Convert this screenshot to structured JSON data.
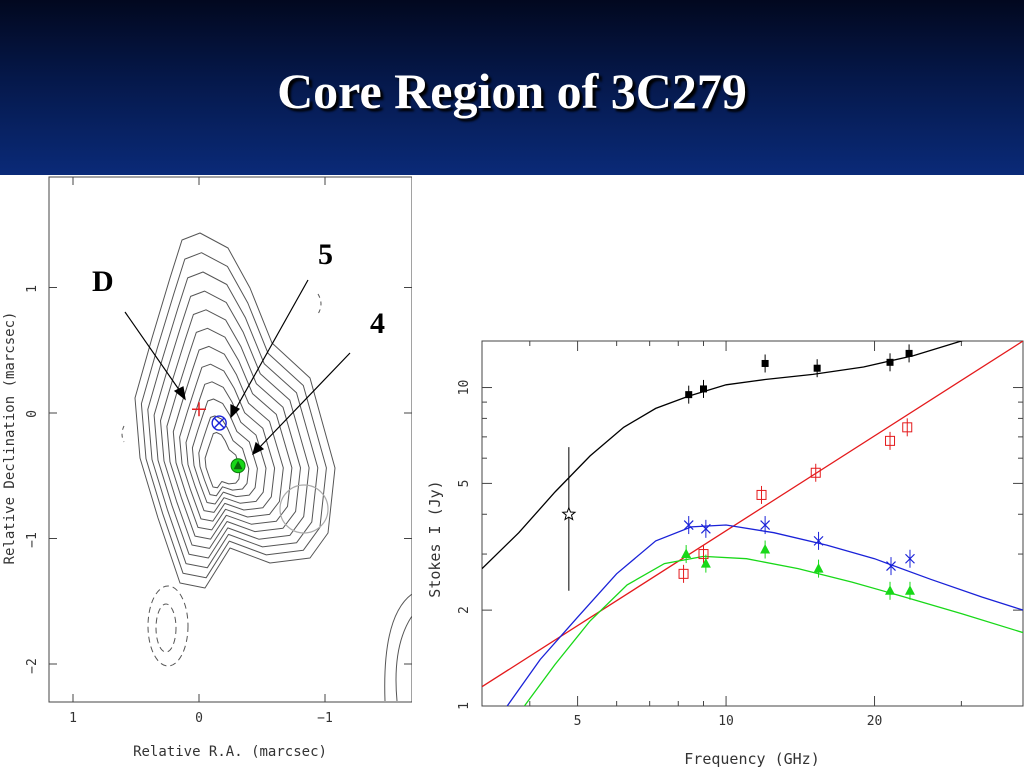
{
  "slide": {
    "title": "Core Region of 3C279"
  },
  "colors": {
    "header_top": "#02081f",
    "header_bottom": "#0a2a78",
    "red": "#e41a1c",
    "blue": "#1a22d8",
    "green": "#18d818",
    "black": "#000000"
  },
  "map": {
    "xlabel": "Relative R.A. (marcsec)",
    "ylabel": "Relative Declination (marcsec)",
    "xticks": [
      "1",
      "0",
      "−1"
    ],
    "yticks": [
      "1",
      "0",
      "−1",
      "−2"
    ],
    "labels": {
      "D": "D",
      "c5": "5",
      "c4": "4"
    },
    "components": [
      {
        "name": "D",
        "ra": 0.0,
        "dec": 0.03,
        "symbol": "plus",
        "color": "#e41a1c"
      },
      {
        "name": "5",
        "ra": -0.16,
        "dec": -0.08,
        "symbol": "circled-x",
        "color": "#1a22d8"
      },
      {
        "name": "4",
        "ra": -0.31,
        "dec": -0.42,
        "symbol": "filled-triangle-circle",
        "color": "#18d818"
      }
    ]
  },
  "chart_data": {
    "type": "scatter",
    "xlabel": "Frequency (GHz)",
    "ylabel": "Stokes I (Jy)",
    "xscale": "log",
    "yscale": "log",
    "xlim": [
      3.2,
      40
    ],
    "ylim": [
      1,
      14
    ],
    "xticks": [
      5,
      10,
      20
    ],
    "yticks": [
      1,
      2,
      5,
      10
    ],
    "series": [
      {
        "marker": "filled-square",
        "color": "#000000",
        "x": [
          8.4,
          9.0,
          12.0,
          15.3,
          21.5,
          23.5
        ],
        "y": [
          9.5,
          9.9,
          11.9,
          11.5,
          12.0,
          12.8
        ],
        "fit": {
          "x": [
            3.2,
            3.8,
            4.5,
            5.3,
            6.2,
            7.2,
            8.4,
            10.0,
            12.0,
            15.0,
            19.0,
            24.0,
            30.0,
            40.0
          ],
          "y": [
            2.7,
            3.5,
            4.7,
            6.1,
            7.5,
            8.6,
            9.4,
            10.2,
            10.6,
            11.0,
            11.6,
            12.6,
            14.0,
            16.0
          ]
        }
      },
      {
        "marker": "open-star",
        "color": "#000000",
        "x": [
          4.8
        ],
        "y": [
          4.0
        ],
        "yerr_low": [
          2.3
        ],
        "yerr_high": [
          6.5
        ]
      },
      {
        "marker": "open-square",
        "color": "#e41a1c",
        "x": [
          8.2,
          9.0,
          11.8,
          15.2,
          21.5,
          23.3
        ],
        "y": [
          2.6,
          3.0,
          4.6,
          5.4,
          6.8,
          7.5
        ],
        "fit": {
          "x": [
            3.2,
            40.0
          ],
          "y": [
            1.15,
            14.0
          ]
        }
      },
      {
        "marker": "x-cross",
        "color": "#1a22d8",
        "x": [
          8.4,
          9.1,
          12.0,
          15.4,
          21.6,
          23.6
        ],
        "y": [
          3.7,
          3.6,
          3.7,
          3.3,
          2.75,
          2.9
        ],
        "fit": {
          "x": [
            3.6,
            4.2,
            5.0,
            6.0,
            7.2,
            8.5,
            10.0,
            12.5,
            16.0,
            20.0,
            26.0,
            33.0,
            40.0
          ],
          "y": [
            1.0,
            1.4,
            1.9,
            2.6,
            3.3,
            3.65,
            3.7,
            3.5,
            3.2,
            2.9,
            2.5,
            2.2,
            2.0
          ]
        }
      },
      {
        "marker": "filled-triangle",
        "color": "#18d818",
        "x": [
          8.3,
          9.1,
          12.0,
          15.4,
          21.5,
          23.6
        ],
        "y": [
          3.0,
          2.8,
          3.1,
          2.7,
          2.3,
          2.3
        ],
        "fit": {
          "x": [
            3.9,
            4.5,
            5.3,
            6.3,
            7.5,
            9.0,
            11.0,
            14.0,
            18.0,
            23.0,
            30.0,
            40.0
          ],
          "y": [
            1.0,
            1.35,
            1.85,
            2.4,
            2.8,
            2.95,
            2.9,
            2.7,
            2.45,
            2.2,
            1.95,
            1.7
          ]
        }
      }
    ]
  }
}
